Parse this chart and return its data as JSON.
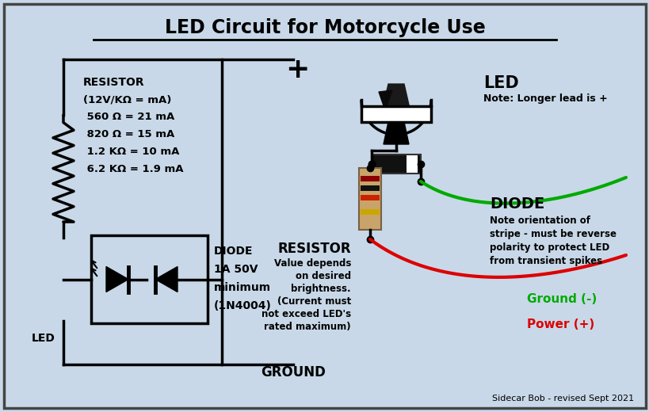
{
  "title": "LED Circuit for Motorcycle Use",
  "bg_color": "#c8d8e8",
  "border_color": "#444444",
  "text_color": "#000000",
  "resistor_text_lines": [
    "RESISTOR",
    "(12V/KΩ = mA)",
    " 560 Ω = 21 mA",
    " 820 Ω = 15 mA",
    " 1.2 KΩ = 10 mA",
    " 6.2 KΩ = 1.9 mA"
  ],
  "diode_text_lines": [
    "DIODE",
    "1A 50V",
    "minimum",
    "(1N4004)"
  ],
  "led_label": "LED",
  "resistor_label": "RESISTOR",
  "resistor_sublabel_lines": [
    "Value depends",
    "on desired",
    "brightness.",
    "(Current must",
    "not exceed LED's",
    "rated maximum)"
  ],
  "diode_label2": "DIODE",
  "diode_sublabel_lines": [
    "Note orientation of",
    "stripe - must be reverse",
    "polarity to protect LED",
    "from transient spikes"
  ],
  "led_note": "Note: Longer lead is +",
  "ground_label": "GROUND",
  "ground_minus": "Ground (-)",
  "power_plus": "Power (+)",
  "sidecar": "Sidecar Bob - revised Sept 2021",
  "plus_sign": "+"
}
